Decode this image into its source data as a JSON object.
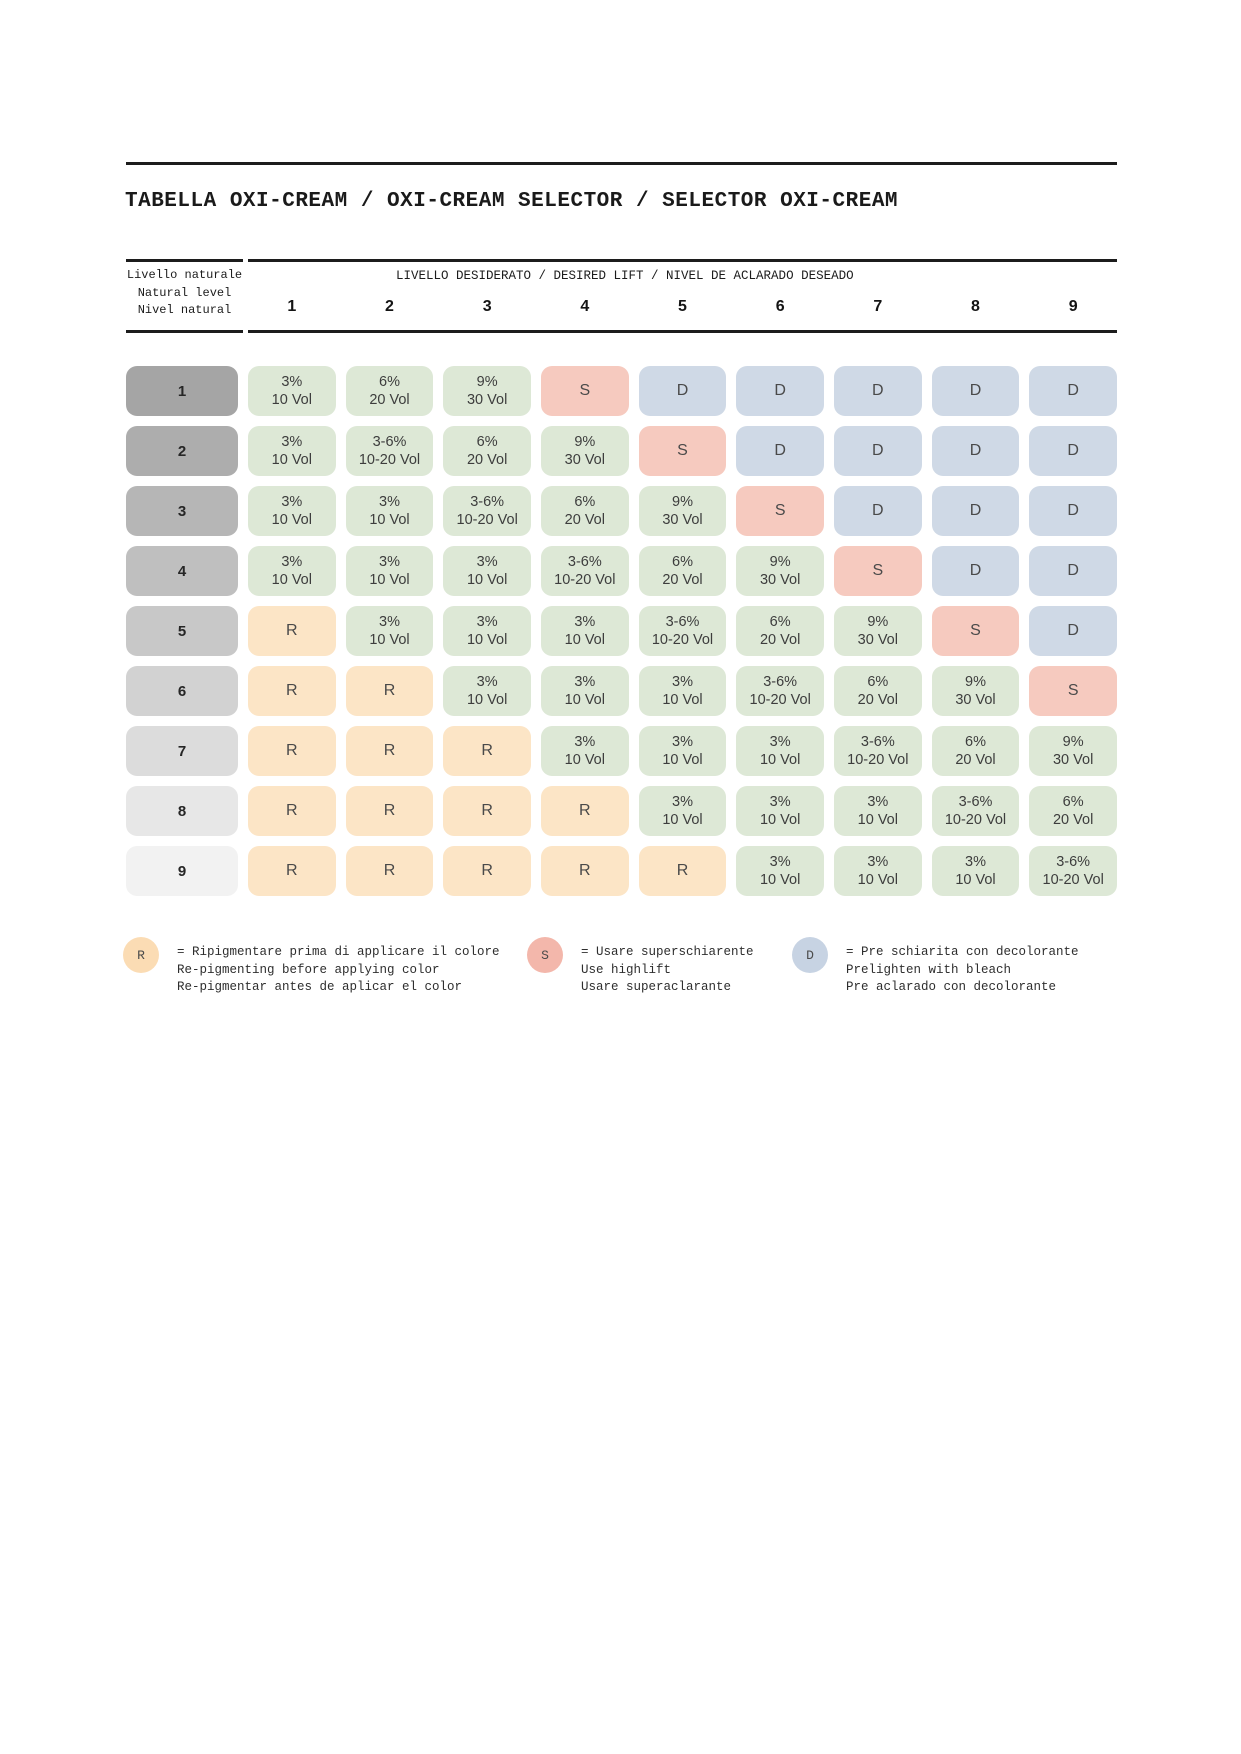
{
  "title": "TABELLA OXI-CREAM / OXI-CREAM SELECTOR / SELECTOR OXI-CREAM",
  "header": {
    "natural_level_lines": [
      "Livello naturale",
      "Natural level",
      "Nivel natural"
    ],
    "desired_lift_label": "LIVELLO DESIDERATO / DESIRED LIFT / NIVEL DE ACLARADO DESEADO",
    "columns": [
      "1",
      "2",
      "3",
      "4",
      "5",
      "6",
      "7",
      "8",
      "9"
    ]
  },
  "table": {
    "rows": [
      {
        "level": "1",
        "cells": [
          "3%\n10 Vol",
          "6%\n20 Vol",
          "9%\n30 Vol",
          "S",
          "D",
          "D",
          "D",
          "D",
          "D"
        ]
      },
      {
        "level": "2",
        "cells": [
          "3%\n10 Vol",
          "3-6%\n10-20 Vol",
          "6%\n20 Vol",
          "9%\n30 Vol",
          "S",
          "D",
          "D",
          "D",
          "D"
        ]
      },
      {
        "level": "3",
        "cells": [
          "3%\n10 Vol",
          "3%\n10 Vol",
          "3-6%\n10-20 Vol",
          "6%\n20 Vol",
          "9%\n30 Vol",
          "S",
          "D",
          "D",
          "D"
        ]
      },
      {
        "level": "4",
        "cells": [
          "3%\n10 Vol",
          "3%\n10 Vol",
          "3%\n10 Vol",
          "3-6%\n10-20 Vol",
          "6%\n20 Vol",
          "9%\n30 Vol",
          "S",
          "D",
          "D"
        ]
      },
      {
        "level": "5",
        "cells": [
          "R",
          "3%\n10 Vol",
          "3%\n10 Vol",
          "3%\n10 Vol",
          "3-6%\n10-20 Vol",
          "6%\n20 Vol",
          "9%\n30 Vol",
          "S",
          "D"
        ]
      },
      {
        "level": "6",
        "cells": [
          "R",
          "R",
          "3%\n10 Vol",
          "3%\n10 Vol",
          "3%\n10 Vol",
          "3-6%\n10-20 Vol",
          "6%\n20 Vol",
          "9%\n30 Vol",
          "S"
        ]
      },
      {
        "level": "7",
        "cells": [
          "R",
          "R",
          "R",
          "3%\n10 Vol",
          "3%\n10 Vol",
          "3%\n10 Vol",
          "3-6%\n10-20 Vol",
          "6%\n20 Vol",
          "9%\n30 Vol"
        ]
      },
      {
        "level": "8",
        "cells": [
          "R",
          "R",
          "R",
          "R",
          "3%\n10 Vol",
          "3%\n10 Vol",
          "3%\n10 Vol",
          "3-6%\n10-20 Vol",
          "6%\n20 Vol"
        ]
      },
      {
        "level": "9",
        "cells": [
          "R",
          "R",
          "R",
          "R",
          "R",
          "3%\n10 Vol",
          "3%\n10 Vol",
          "3%\n10 Vol",
          "3-6%\n10-20 Vol"
        ]
      }
    ]
  },
  "legend": [
    {
      "symbol": "R",
      "lines": [
        "= Ripigmentare prima di applicare il colore",
        "Re-pigmenting before applying color",
        "Re-pigmentar antes de aplicar el color"
      ]
    },
    {
      "symbol": "S",
      "lines": [
        "= Usare superschiarente",
        "Use highlift",
        "Usare superaclarante"
      ]
    },
    {
      "symbol": "D",
      "lines": [
        "= Pre schiarita con decolorante",
        "Prelighten with bleach",
        "Pre aclarado con decolorante"
      ]
    }
  ],
  "colors": {
    "cell_oxidant": "#dde8d6",
    "cell_highlift": "#f6cabf",
    "cell_bleach": "#cfd9e6",
    "cell_repigment": "#fce5c6",
    "legend_repigment": "#fbdcb4",
    "legend_highlift": "#f3b7ab",
    "legend_bleach": "#c7d3e3",
    "level_shades": [
      "#a5a5a5",
      "#adadad",
      "#b6b6b6",
      "#bfbfbf",
      "#c8c8c8",
      "#d2d2d2",
      "#dcdcdc",
      "#e7e7e7",
      "#f2f2f2"
    ]
  }
}
